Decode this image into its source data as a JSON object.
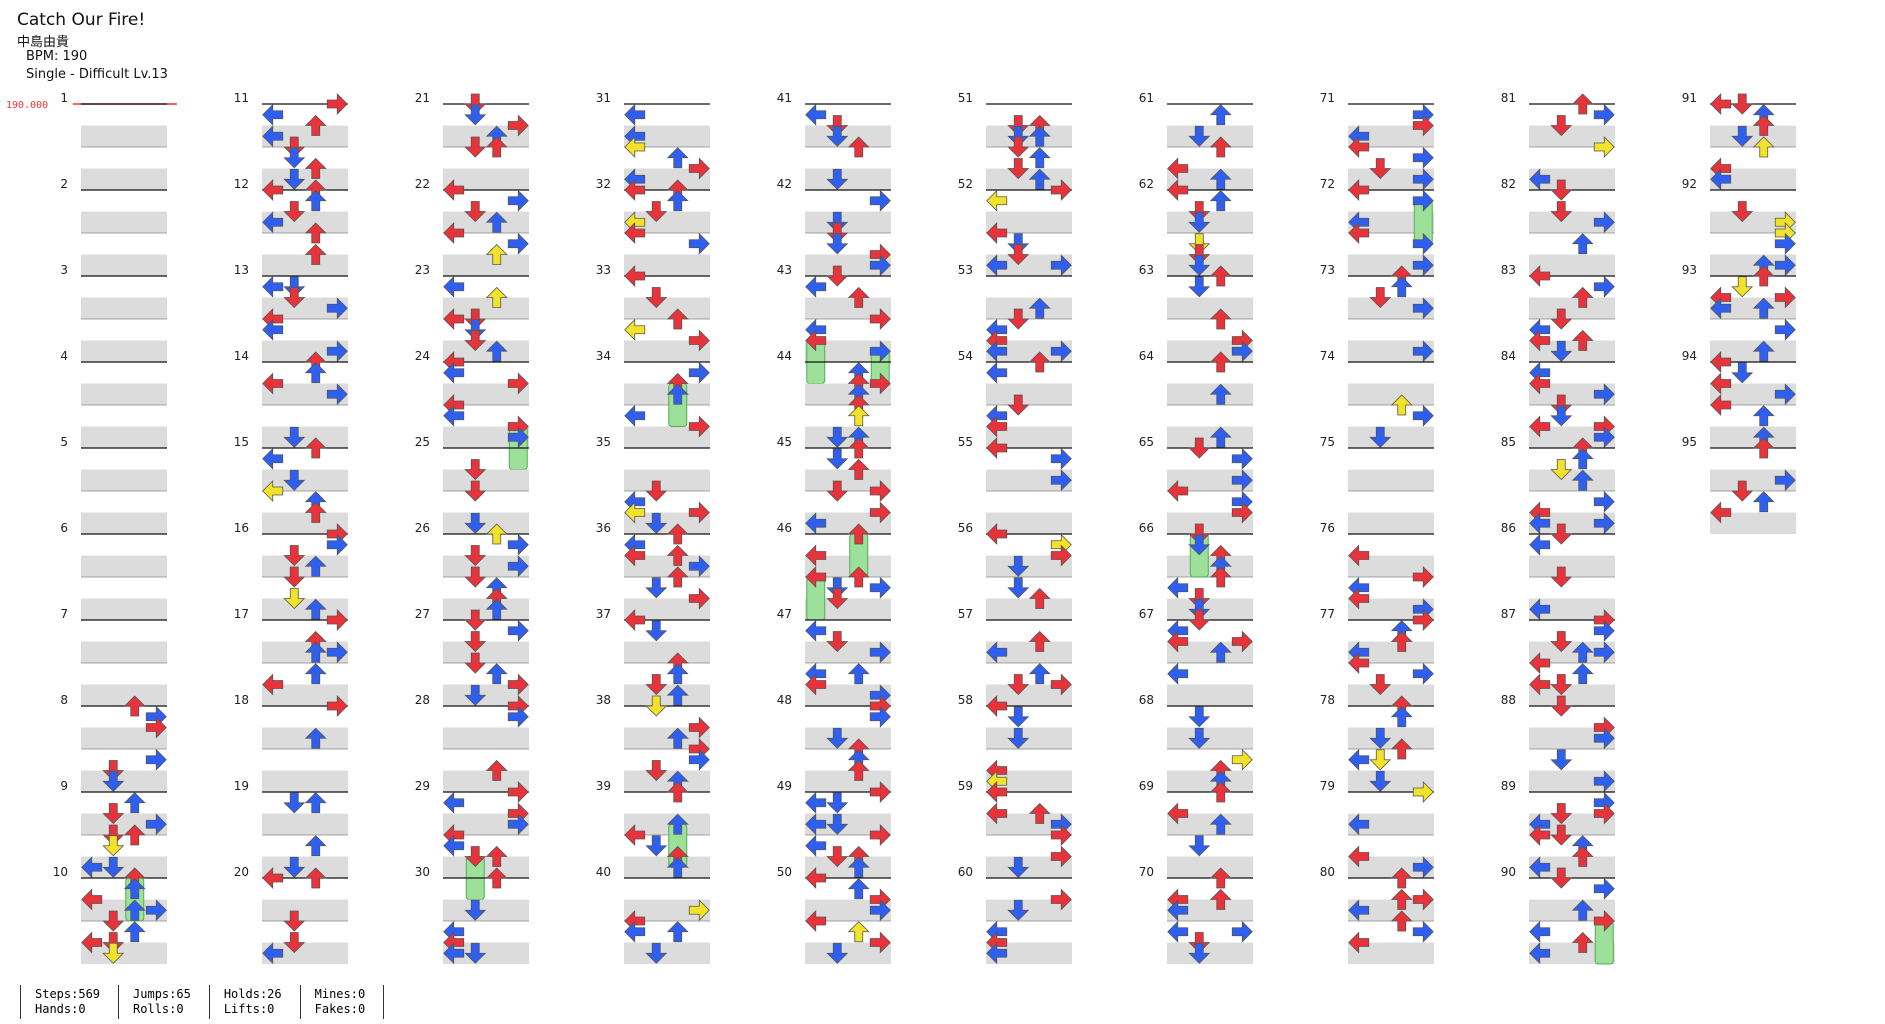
{
  "header": {
    "title": "Catch Our Fire!",
    "artist": "中島由貴",
    "bpm": "BPM: 190",
    "difficulty": "Single - Difficult Lv.13"
  },
  "bpm_marker": "190.000",
  "measures": [
    1,
    2,
    3,
    4,
    5,
    6,
    7,
    8,
    9,
    10,
    11,
    12,
    13,
    14,
    15,
    16,
    17,
    18,
    19,
    20,
    21,
    22,
    23,
    24,
    25,
    26,
    27,
    28,
    29,
    30,
    31,
    32,
    33,
    34,
    35,
    36,
    37,
    38,
    39,
    40,
    41,
    42,
    43,
    44,
    45,
    46,
    47,
    48,
    49,
    50,
    51,
    52,
    53,
    54,
    55,
    56,
    57,
    58,
    59,
    60,
    61,
    62,
    63,
    64,
    65,
    66,
    67,
    68,
    69,
    70,
    71,
    72,
    73,
    74,
    75,
    76,
    77,
    78,
    79,
    80,
    81,
    82,
    83,
    84,
    85,
    86,
    87,
    88,
    89,
    90,
    91,
    92,
    93,
    94,
    95
  ],
  "stats": [
    [
      "Steps:569",
      "Hands:0"
    ],
    [
      "Jumps:65",
      "Rolls:0"
    ],
    [
      "Holds:26",
      "Lifts:0"
    ],
    [
      "Mines:0",
      "Fakes:0"
    ]
  ]
}
